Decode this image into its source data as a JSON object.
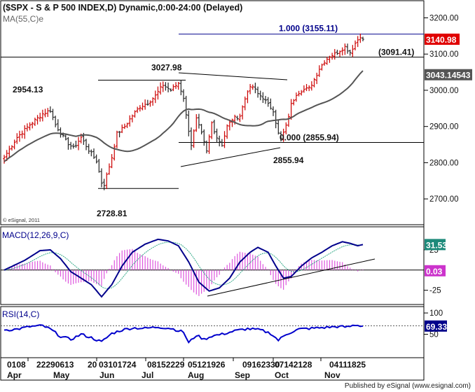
{
  "header": {
    "title": "($SPX - S & P 500 INDEX,D) Dynamic,0:00-24:00 (Delayed)",
    "ma_label": "MA(55,C)e",
    "copyright": "© eSignal, 2011"
  },
  "footer": {
    "credit": "Published by eSignal (www.esignal.com)"
  },
  "colors": {
    "up_bar": "#cc0000",
    "down_bar": "#222222",
    "ma": "#555555",
    "macd": "#00008b",
    "signal": "#33aa88",
    "histogram": "#dd55dd",
    "rsi": "#0000cc",
    "price_tag": "#e00000",
    "ma_tag": "#555555",
    "macd_tag": "#1d8a7a",
    "hist_tag": "#cc33cc",
    "rsi_tag": "#00008b"
  },
  "chart_data": [
    {
      "type": "bar",
      "panel": "price",
      "ylim": [
        2650,
        3230
      ],
      "yticks": [
        "3200.00",
        "3100.00",
        "3000.00",
        "2900.00",
        "2800.00",
        "2700.00"
      ],
      "ytick_values": [
        3200,
        3100,
        3000,
        2900,
        2800,
        2700
      ],
      "close_tag": "3140.98",
      "ma_tag": "3043.14543",
      "anchors": [
        {
          "i": 0,
          "c": 2815
        },
        {
          "i": 5,
          "c": 2870
        },
        {
          "i": 10,
          "c": 2905
        },
        {
          "i": 15,
          "c": 2935
        },
        {
          "i": 18,
          "c": 2945
        },
        {
          "i": 20,
          "c": 2905
        },
        {
          "i": 24,
          "c": 2860
        },
        {
          "i": 27,
          "c": 2840
        },
        {
          "i": 30,
          "c": 2870
        },
        {
          "i": 33,
          "c": 2835
        },
        {
          "i": 36,
          "c": 2805
        },
        {
          "i": 38,
          "c": 2745
        },
        {
          "i": 39,
          "c": 2740
        },
        {
          "i": 42,
          "c": 2815
        },
        {
          "i": 44,
          "c": 2880
        },
        {
          "i": 47,
          "c": 2900
        },
        {
          "i": 50,
          "c": 2930
        },
        {
          "i": 53,
          "c": 2955
        },
        {
          "i": 56,
          "c": 2965
        },
        {
          "i": 59,
          "c": 2985
        },
        {
          "i": 62,
          "c": 3015
        },
        {
          "i": 65,
          "c": 3000
        },
        {
          "i": 68,
          "c": 3020
        },
        {
          "i": 70,
          "c": 2980
        },
        {
          "i": 71,
          "c": 2930
        },
        {
          "i": 73,
          "c": 2850
        },
        {
          "i": 75,
          "c": 2920
        },
        {
          "i": 77,
          "c": 2880
        },
        {
          "i": 79,
          "c": 2830
        },
        {
          "i": 81,
          "c": 2910
        },
        {
          "i": 83,
          "c": 2870
        },
        {
          "i": 85,
          "c": 2850
        },
        {
          "i": 87,
          "c": 2900
        },
        {
          "i": 89,
          "c": 2920
        },
        {
          "i": 92,
          "c": 2930
        },
        {
          "i": 95,
          "c": 3000
        },
        {
          "i": 97,
          "c": 3010
        },
        {
          "i": 99,
          "c": 2990
        },
        {
          "i": 101,
          "c": 2980
        },
        {
          "i": 103,
          "c": 2960
        },
        {
          "i": 105,
          "c": 2945
        },
        {
          "i": 107,
          "c": 2880
        },
        {
          "i": 108,
          "c": 2865
        },
        {
          "i": 110,
          "c": 2900
        },
        {
          "i": 112,
          "c": 2960
        },
        {
          "i": 114,
          "c": 2990
        },
        {
          "i": 116,
          "c": 3000
        },
        {
          "i": 119,
          "c": 3005
        },
        {
          "i": 121,
          "c": 3030
        },
        {
          "i": 123,
          "c": 3060
        },
        {
          "i": 125,
          "c": 3080
        },
        {
          "i": 127,
          "c": 3095
        },
        {
          "i": 129,
          "c": 3100
        },
        {
          "i": 131,
          "c": 3110
        },
        {
          "i": 133,
          "c": 3120
        },
        {
          "i": 135,
          "c": 3105
        },
        {
          "i": 137,
          "c": 3130
        },
        {
          "i": 139,
          "c": 3150
        },
        {
          "i": 140,
          "c": 3141
        }
      ],
      "annotations": [
        {
          "text": "1.000 (3155.11)",
          "value": 3155.11,
          "x_from": 105,
          "x_to": 140
        },
        {
          "text": "(3091.41)",
          "value": 3091.41,
          "x_from": 0,
          "x_to": 140
        },
        {
          "text": "3027.98",
          "value": 3027.98,
          "x_from": 38,
          "x_to": 70
        },
        {
          "text": "2954.13",
          "value": 2954.13
        },
        {
          "text": "0.000 (2855.94)",
          "value": 2855.94,
          "x_from": 70,
          "x_to": 140
        },
        {
          "text": "2855.94",
          "value": 2855.94
        },
        {
          "text": "2728.81",
          "value": 2728.81,
          "x_from": 38,
          "x_to": 70
        }
      ]
    },
    {
      "type": "line",
      "panel": "macd",
      "label": "MACD(12,26,9,C)",
      "ylim": [
        -40,
        50
      ],
      "yticks": [
        "25",
        "-25"
      ],
      "ytick_values": [
        25,
        -25
      ],
      "macd_tag": "31.53",
      "hist_tag": "0.03",
      "anchors": [
        {
          "i": 0,
          "v": 0
        },
        {
          "i": 8,
          "v": 12
        },
        {
          "i": 14,
          "v": 24
        },
        {
          "i": 18,
          "v": 25
        },
        {
          "i": 22,
          "v": 14
        },
        {
          "i": 26,
          "v": -2
        },
        {
          "i": 30,
          "v": -10
        },
        {
          "i": 34,
          "v": -18
        },
        {
          "i": 38,
          "v": -33
        },
        {
          "i": 42,
          "v": -18
        },
        {
          "i": 46,
          "v": 5
        },
        {
          "i": 50,
          "v": 22
        },
        {
          "i": 55,
          "v": 32
        },
        {
          "i": 60,
          "v": 38
        },
        {
          "i": 64,
          "v": 36
        },
        {
          "i": 68,
          "v": 30
        },
        {
          "i": 72,
          "v": 10
        },
        {
          "i": 76,
          "v": -15
        },
        {
          "i": 80,
          "v": -26
        },
        {
          "i": 84,
          "v": -22
        },
        {
          "i": 88,
          "v": -10
        },
        {
          "i": 92,
          "v": 10
        },
        {
          "i": 96,
          "v": 22
        },
        {
          "i": 99,
          "v": 28
        },
        {
          "i": 103,
          "v": 22
        },
        {
          "i": 106,
          "v": 5
        },
        {
          "i": 109,
          "v": -10
        },
        {
          "i": 112,
          "v": -8
        },
        {
          "i": 116,
          "v": 5
        },
        {
          "i": 120,
          "v": 15
        },
        {
          "i": 124,
          "v": 22
        },
        {
          "i": 128,
          "v": 30
        },
        {
          "i": 132,
          "v": 35
        },
        {
          "i": 135,
          "v": 33
        },
        {
          "i": 138,
          "v": 30
        },
        {
          "i": 140,
          "v": 31.5
        }
      ]
    },
    {
      "type": "line",
      "panel": "rsi",
      "label": "RSI(14,C)",
      "ylim": [
        0,
        110
      ],
      "yticks": [
        "100",
        "50"
      ],
      "ytick_values": [
        100,
        50
      ],
      "rsi_tag": "69.33",
      "anchors": [
        {
          "i": 0,
          "v": 60
        },
        {
          "i": 5,
          "v": 62
        },
        {
          "i": 10,
          "v": 68
        },
        {
          "i": 15,
          "v": 70
        },
        {
          "i": 18,
          "v": 62
        },
        {
          "i": 22,
          "v": 45
        },
        {
          "i": 26,
          "v": 38
        },
        {
          "i": 30,
          "v": 50
        },
        {
          "i": 34,
          "v": 42
        },
        {
          "i": 38,
          "v": 32
        },
        {
          "i": 42,
          "v": 52
        },
        {
          "i": 46,
          "v": 60
        },
        {
          "i": 50,
          "v": 65
        },
        {
          "i": 55,
          "v": 64
        },
        {
          "i": 60,
          "v": 67
        },
        {
          "i": 65,
          "v": 64
        },
        {
          "i": 70,
          "v": 55
        },
        {
          "i": 72,
          "v": 30
        },
        {
          "i": 75,
          "v": 48
        },
        {
          "i": 78,
          "v": 38
        },
        {
          "i": 81,
          "v": 46
        },
        {
          "i": 85,
          "v": 50
        },
        {
          "i": 90,
          "v": 58
        },
        {
          "i": 95,
          "v": 63
        },
        {
          "i": 100,
          "v": 60
        },
        {
          "i": 104,
          "v": 52
        },
        {
          "i": 107,
          "v": 36
        },
        {
          "i": 110,
          "v": 50
        },
        {
          "i": 115,
          "v": 62
        },
        {
          "i": 120,
          "v": 64
        },
        {
          "i": 125,
          "v": 66
        },
        {
          "i": 130,
          "v": 68
        },
        {
          "i": 134,
          "v": 67
        },
        {
          "i": 137,
          "v": 72
        },
        {
          "i": 140,
          "v": 69.3
        }
      ]
    }
  ],
  "x_axis": {
    "day_labels": [
      "0108",
      "22290613",
      "20",
      "03101724",
      "08152229",
      "05121926",
      "09162330",
      "07142128",
      "04111825"
    ],
    "month_labels": [
      "Apr",
      "May",
      "Jun",
      "Jul",
      "Aug",
      "Sep",
      "Oct",
      "Nov"
    ]
  }
}
